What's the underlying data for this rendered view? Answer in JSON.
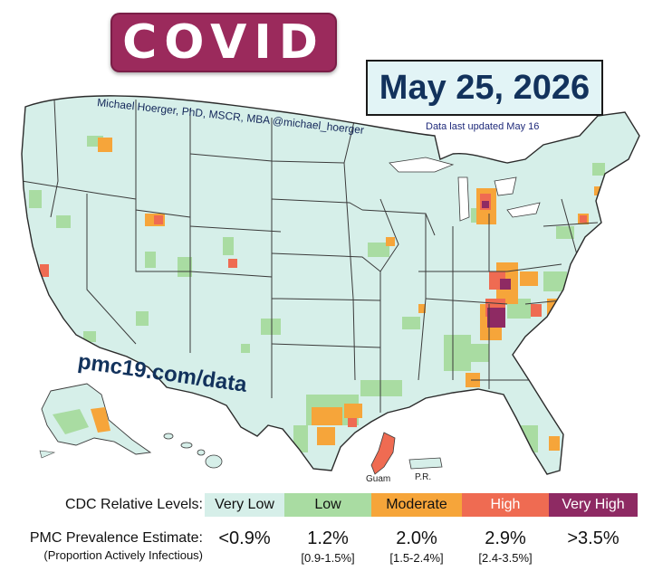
{
  "title": "COVID",
  "date": "May 25, 2026",
  "updated_note": "Data last updated May 16",
  "credit": "Michael Hoerger, PhD, MSCR, MBA  @michael_hoerger",
  "url": "pmc19.com/data",
  "territories": {
    "guam": "Guam",
    "pr": "P.R."
  },
  "colors": {
    "very_low": "#d6efe9",
    "low": "#a9dca2",
    "moderate": "#f6a53a",
    "high": "#ef6b52",
    "very_high": "#8e2a63",
    "border": "#3b3b3b"
  },
  "legend": {
    "cdc_label": "CDC Relative Levels:",
    "levels": [
      {
        "label": "Very Low",
        "color": "#d6efe9",
        "text_color": "#111111"
      },
      {
        "label": "Low",
        "color": "#a9dca2",
        "text_color": "#111111"
      },
      {
        "label": "Moderate",
        "color": "#f6a53a",
        "text_color": "#111111"
      },
      {
        "label": "High",
        "color": "#ef6b52",
        "text_color": "#ffffff"
      },
      {
        "label": "Very High",
        "color": "#8e2a63",
        "text_color": "#ffffff"
      }
    ],
    "pmc_label": "PMC Prevalence Estimate:",
    "pmc_sublabel": "(Proportion Actively Infectious)",
    "estimates": [
      {
        "value": "<0.9%",
        "range": ""
      },
      {
        "value": "1.2%",
        "range": "[0.9-1.5%]"
      },
      {
        "value": "2.0%",
        "range": "[1.5-2.4%]"
      },
      {
        "value": "2.9%",
        "range": "[2.4-3.5%]"
      },
      {
        "value": ">3.5%",
        "range": ""
      }
    ]
  }
}
